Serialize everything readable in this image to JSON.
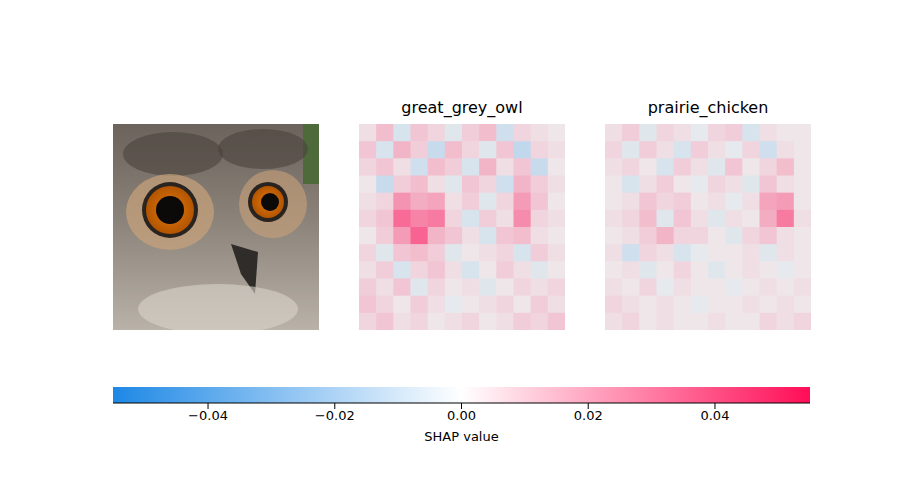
{
  "chart_data": {
    "type": "heatmap",
    "tick_labels": false,
    "panels": [
      {
        "title": "great_grey_owl",
        "cells": [
          [
            0.004,
            0.012,
            -0.006,
            0.01,
            0.006,
            -0.004,
            0.008,
            0.012,
            -0.008,
            0.006,
            0.004,
            0.002
          ],
          [
            0.01,
            -0.006,
            0.014,
            0.008,
            -0.01,
            0.012,
            0.006,
            -0.004,
            0.01,
            -0.012,
            0.006,
            0.004
          ],
          [
            0.006,
            0.01,
            0.004,
            -0.008,
            0.012,
            0.008,
            -0.006,
            0.014,
            0.004,
            0.01,
            -0.01,
            0.002
          ],
          [
            0.002,
            -0.01,
            0.008,
            0.012,
            0.004,
            -0.004,
            0.01,
            0.006,
            -0.008,
            0.014,
            0.008,
            0.004
          ],
          [
            0.004,
            0.006,
            0.022,
            0.016,
            0.018,
            0.004,
            0.008,
            -0.004,
            0.006,
            0.02,
            0.01,
            0.002
          ],
          [
            0.006,
            0.01,
            0.032,
            0.026,
            0.028,
            0.006,
            -0.006,
            0.008,
            0.004,
            0.024,
            0.006,
            0.004
          ],
          [
            0.002,
            0.008,
            0.02,
            0.034,
            0.014,
            0.01,
            0.004,
            -0.006,
            0.01,
            0.012,
            0.004,
            0.002
          ],
          [
            0.006,
            -0.004,
            0.01,
            0.012,
            0.008,
            -0.004,
            0.002,
            0.004,
            0.006,
            -0.006,
            0.008,
            0.004
          ],
          [
            0.004,
            0.008,
            -0.006,
            0.006,
            0.01,
            0.004,
            -0.006,
            0.002,
            0.008,
            0.004,
            -0.004,
            0.002
          ],
          [
            0.008,
            0.004,
            0.01,
            -0.004,
            0.006,
            0.002,
            0.004,
            -0.004,
            0.002,
            0.006,
            0.004,
            0.006
          ],
          [
            0.01,
            0.006,
            0.002,
            0.008,
            0.004,
            -0.002,
            0.002,
            0.004,
            0.006,
            0.002,
            0.008,
            0.004
          ],
          [
            0.006,
            0.01,
            0.004,
            0.006,
            0.002,
            0.004,
            0.006,
            0.002,
            0.004,
            0.008,
            0.006,
            0.01
          ]
        ]
      },
      {
        "title": "prairie_chicken",
        "cells": [
          [
            0.004,
            0.008,
            -0.004,
            0.006,
            0.004,
            -0.002,
            0.006,
            0.008,
            -0.006,
            0.004,
            0.002,
            0.002
          ],
          [
            0.006,
            -0.004,
            0.008,
            0.004,
            -0.006,
            0.008,
            0.004,
            -0.002,
            0.006,
            -0.008,
            0.004,
            0.002
          ],
          [
            0.004,
            0.006,
            0.002,
            -0.006,
            0.008,
            0.004,
            -0.004,
            0.01,
            0.002,
            0.006,
            0.012,
            0.002
          ],
          [
            0.002,
            -0.006,
            0.004,
            0.008,
            0.002,
            -0.002,
            0.006,
            0.004,
            -0.004,
            0.01,
            0.004,
            0.002
          ],
          [
            0.002,
            0.004,
            0.01,
            0.006,
            0.008,
            0.002,
            0.004,
            -0.002,
            0.004,
            0.018,
            0.02,
            0.002
          ],
          [
            0.004,
            0.006,
            0.012,
            -0.004,
            0.01,
            0.004,
            -0.004,
            0.004,
            0.002,
            0.016,
            0.028,
            0.004
          ],
          [
            0.002,
            0.004,
            0.008,
            0.014,
            0.006,
            0.006,
            0.002,
            -0.004,
            0.006,
            0.01,
            0.004,
            0.002
          ],
          [
            0.004,
            -0.008,
            0.006,
            0.004,
            -0.006,
            -0.002,
            0.002,
            0.002,
            0.004,
            -0.004,
            0.004,
            0.002
          ],
          [
            0.002,
            0.004,
            -0.004,
            0.002,
            0.006,
            0.002,
            -0.004,
            0.002,
            0.004,
            0.002,
            -0.002,
            0.002
          ],
          [
            0.004,
            0.002,
            0.006,
            -0.002,
            0.004,
            0.002,
            0.002,
            -0.002,
            0.002,
            0.004,
            0.002,
            0.004
          ],
          [
            0.006,
            0.004,
            0.002,
            0.004,
            0.002,
            -0.002,
            0.002,
            0.002,
            0.004,
            0.002,
            0.004,
            0.002
          ],
          [
            0.004,
            0.006,
            0.002,
            0.004,
            0.002,
            0.002,
            0.004,
            0.002,
            0.002,
            0.006,
            0.004,
            0.006
          ]
        ]
      }
    ],
    "colorbar": {
      "label": "SHAP value",
      "range": [
        -0.055,
        0.055
      ],
      "ticks": [
        {
          "value": -0.04,
          "label": "−0.04"
        },
        {
          "value": -0.02,
          "label": "−0.02"
        },
        {
          "value": 0,
          "label": "0.00"
        },
        0.02,
        0.04
      ]
    }
  }
}
